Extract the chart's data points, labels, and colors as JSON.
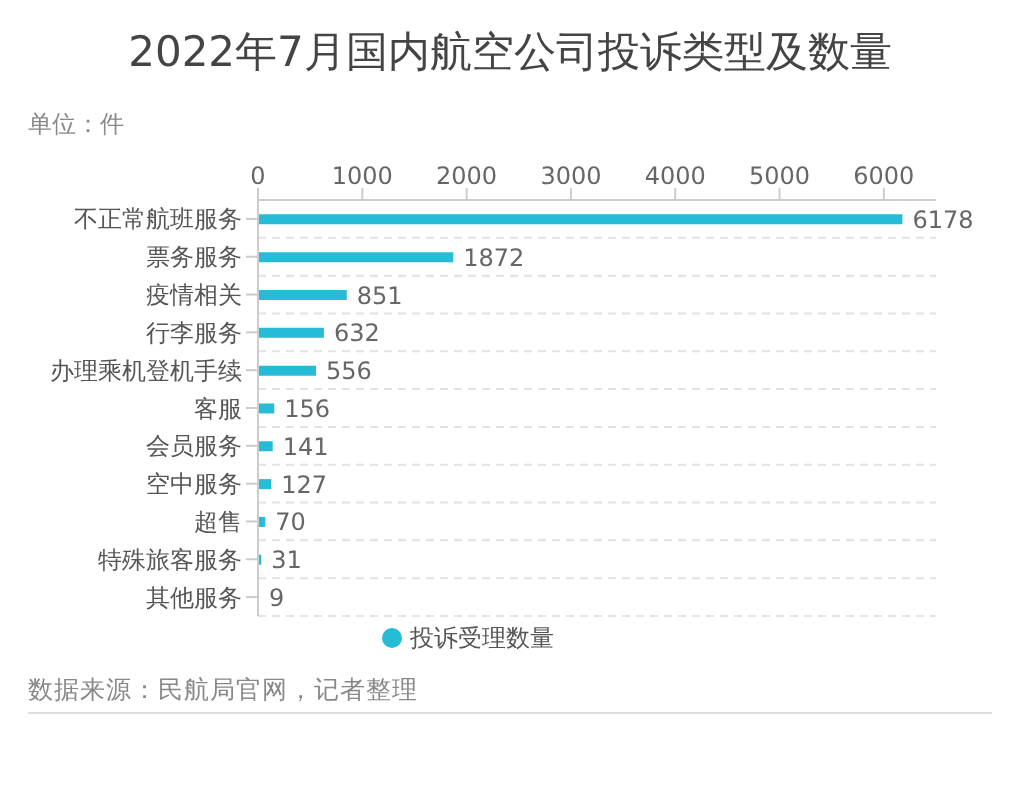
{
  "chart_data": {
    "type": "bar",
    "orientation": "horizontal",
    "title": "2022年7月国内航空公司投诉类型及数量",
    "subtitle": "单位：件",
    "categories": [
      "不正常航班服务",
      "票务服务",
      "疫情相关",
      "行李服务",
      "办理乘机登机手续",
      "客服",
      "会员服务",
      "空中服务",
      "超售",
      "特殊旅客服务",
      "其他服务"
    ],
    "series": [
      {
        "name": "投诉受理数量",
        "color": "#26bcd7",
        "values": [
          6178,
          1872,
          851,
          632,
          556,
          156,
          141,
          127,
          70,
          31,
          9
        ]
      }
    ],
    "xlim": [
      0,
      6500
    ],
    "xticks": [
      0,
      1000,
      2000,
      3000,
      4000,
      5000,
      6000
    ],
    "grid": "y",
    "legend": "bottom",
    "data_labels": true,
    "annotations": [
      "数据来源：民航局官网，记者整理"
    ]
  }
}
